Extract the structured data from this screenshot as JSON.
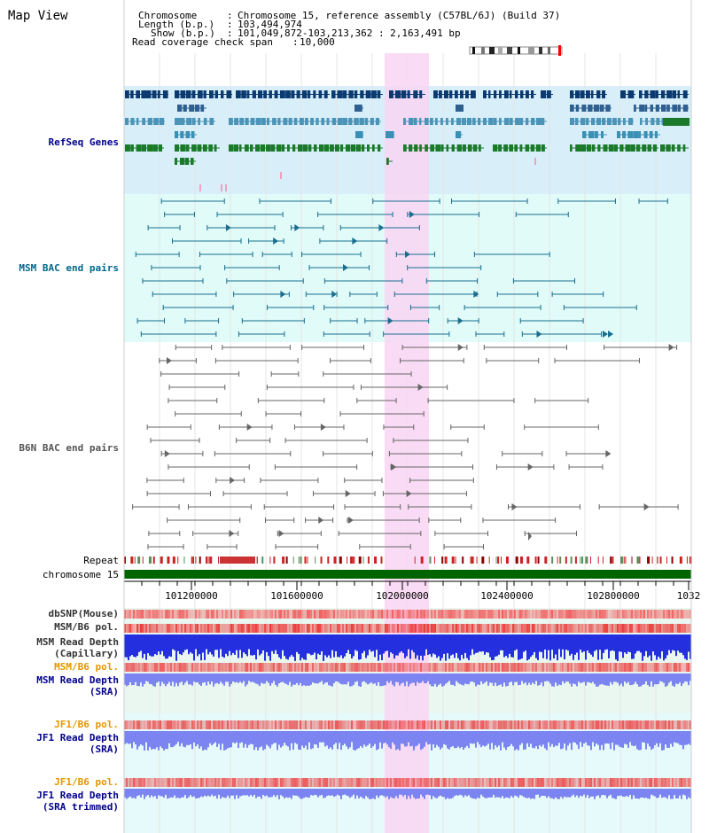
{
  "page": {
    "title": "Map View"
  },
  "header": {
    "chromosome_label": "Chromosome",
    "chromosome_value": "Chromosome 15, reference assembly (C57BL/6J) (Build 37)",
    "length_label": "Length (b.p.)",
    "length_value": "103,494,974",
    "show_label": "Show (b.p.)",
    "show_value": "101,049,872-103,213,362 : 2,163,491 bp",
    "coverage_label": "Read coverage check span",
    "coverage_value": "10,000",
    "sep": ":"
  },
  "tracks": {
    "refseq": "RefSeq Genes",
    "msm_bac": "MSM BAC end pairs",
    "b6n_bac": "B6N BAC end pairs",
    "repeat": "Repeat",
    "chromosome": "chromosome 15",
    "dbsnp": "dbSNP(Mouse)",
    "msm_b6_pol": "MSM/B6 pol.",
    "msm_read_depth_cap_1": "MSM Read Depth",
    "msm_read_depth_cap_2": "(Capillary)",
    "msm_b6_pol_sra": "MSM/B6 pol.",
    "msm_read_depth_sra_1": "MSM Read Depth",
    "msm_read_depth_sra_2": "(SRA)",
    "jf1_b6_pol": "JF1/B6 pol.",
    "jf1_read_depth_1": "JF1 Read Depth",
    "jf1_read_depth_2": "(SRA)",
    "jf1_b6_pol_trim": "JF1/B6 pol.",
    "jf1_read_depth_trim_1": "JF1 Read Depth",
    "jf1_read_depth_trim_2": "(SRA trimmed)"
  },
  "axis": {
    "ticks": [
      "101200000",
      "101600000",
      "102000000",
      "102400000",
      "102800000",
      "1032"
    ]
  },
  "colors": {
    "refseq_label": "#00008b",
    "msm_label": "#00688b",
    "b6n_label": "#555555",
    "pol_label": "#e69500",
    "depth_label": "#00008b",
    "highlight": "#f9d5f3",
    "chromosome_bar": "#006400"
  }
}
